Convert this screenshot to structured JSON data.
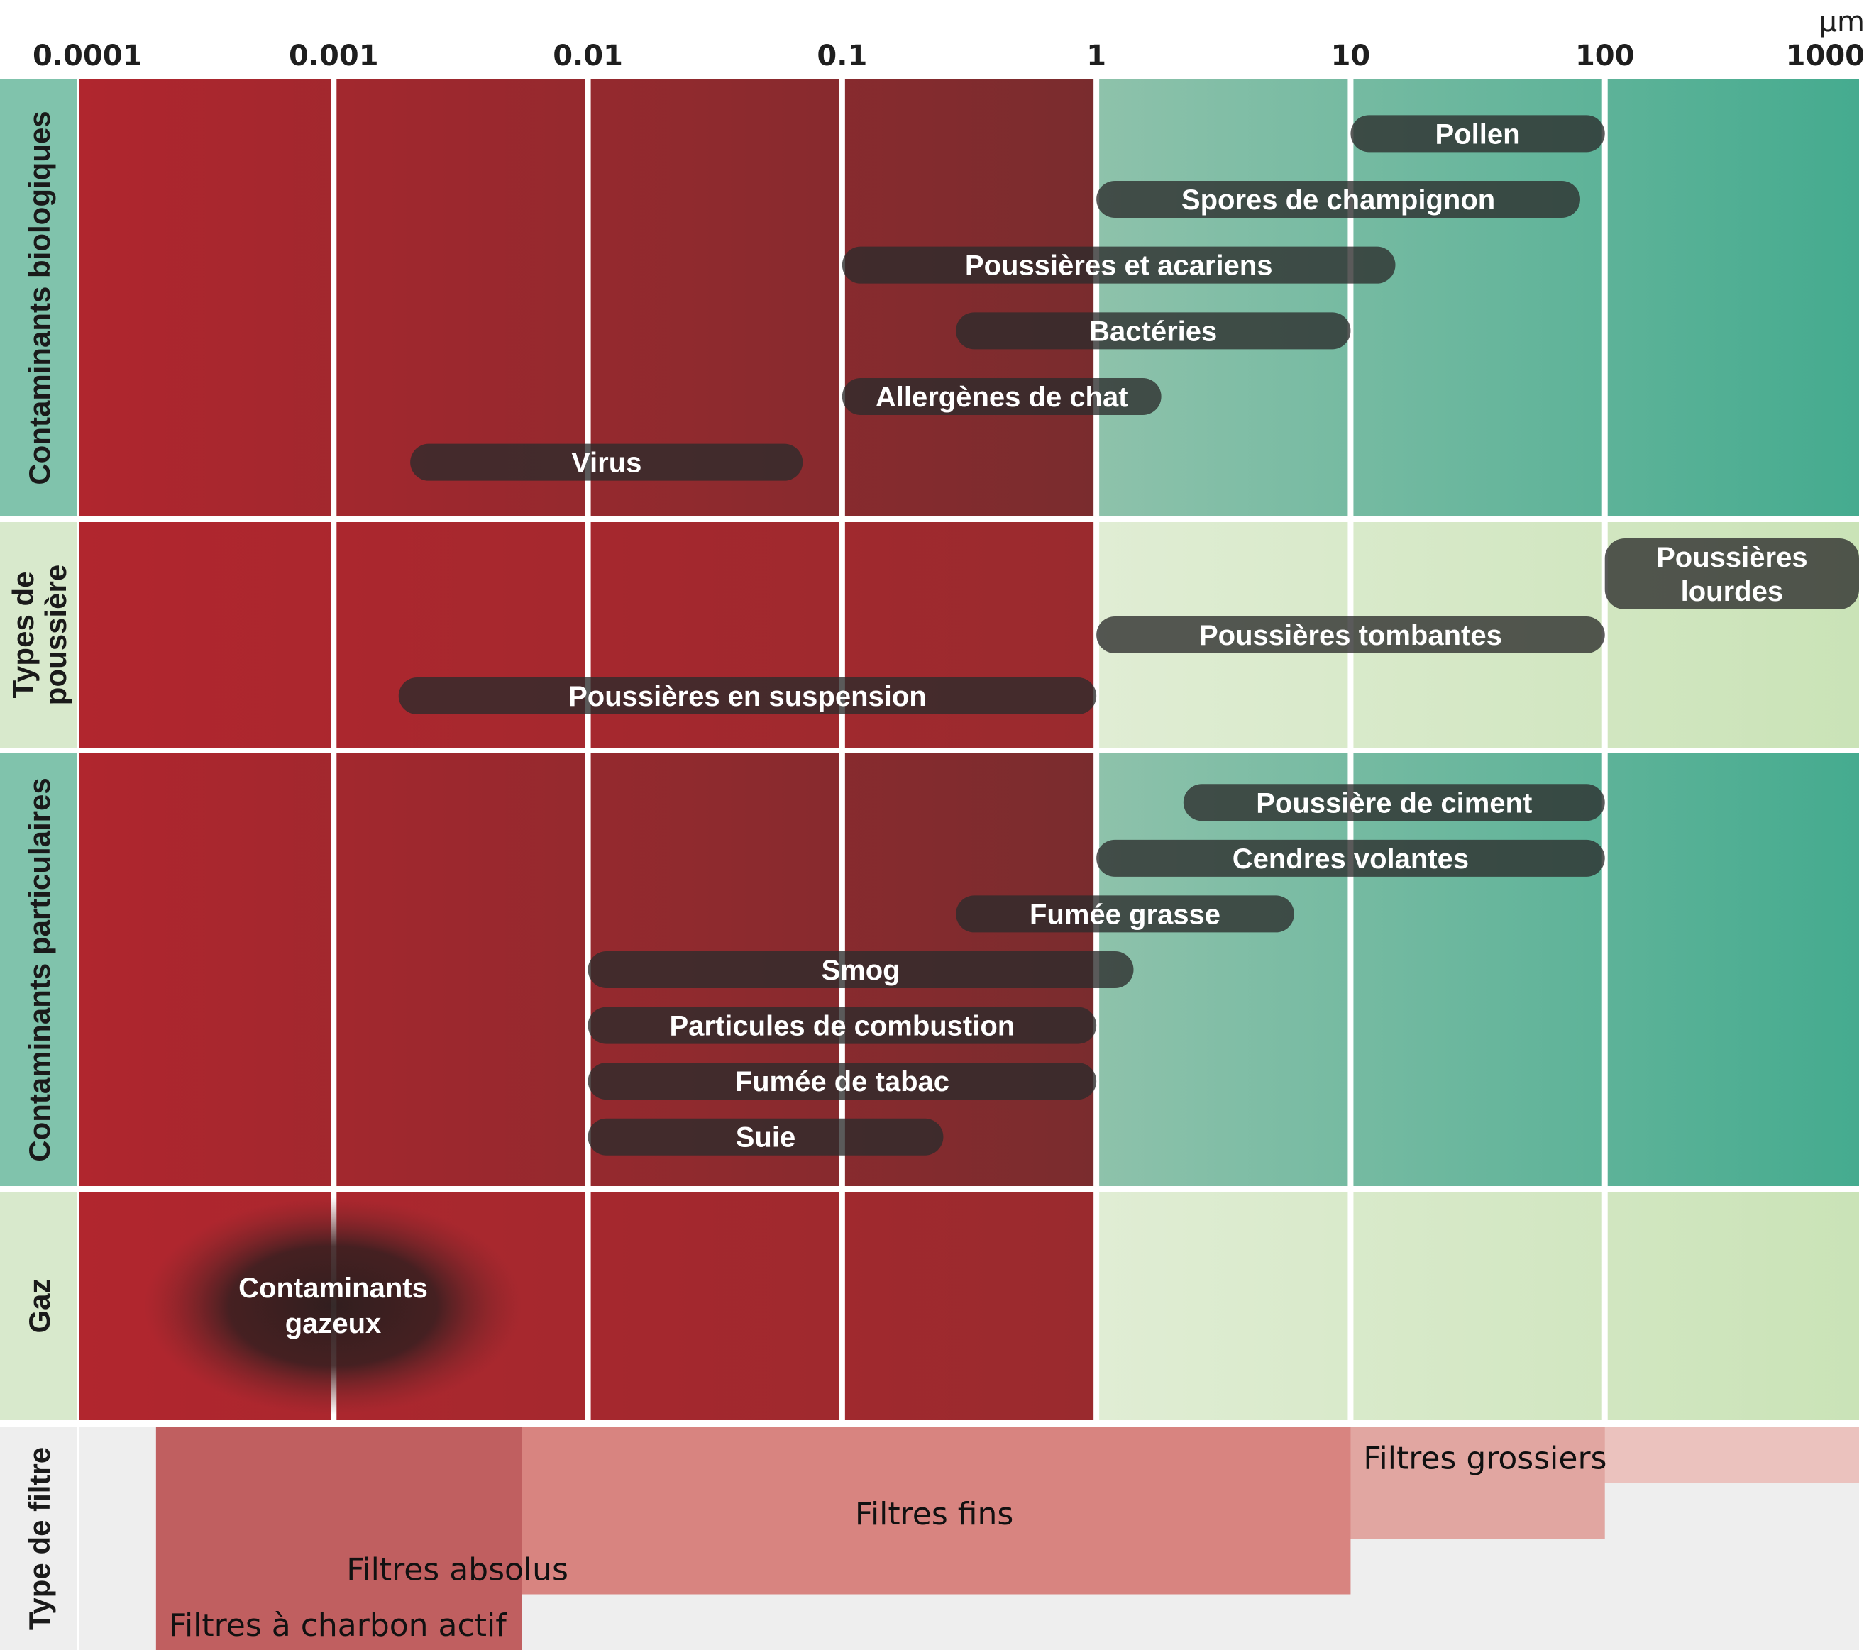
{
  "chart_data": {
    "type": "bar",
    "subtype": "horizontal-range-log-scale",
    "title": "",
    "xlabel": "",
    "x_unit": "µm",
    "x_scale": "log",
    "xlim": [
      0.0001,
      1000
    ],
    "x_ticks": [
      {
        "value": 0.0001,
        "label": "0.0001"
      },
      {
        "value": 0.001,
        "label": "0.001"
      },
      {
        "value": 0.01,
        "label": "0.01"
      },
      {
        "value": 0.1,
        "label": "0.1"
      },
      {
        "value": 1,
        "label": "1"
      },
      {
        "value": 10,
        "label": "10"
      },
      {
        "value": 100,
        "label": "100"
      },
      {
        "value": 1000,
        "label": "1000"
      }
    ],
    "grid": true,
    "background_zones": [
      {
        "name": "fine-red-zone",
        "from": 0.0001,
        "to": 1,
        "color_start": "#b0262e",
        "color_end": "#7a2c2e"
      },
      {
        "name": "coarse-green-zone",
        "from": 1,
        "to": 1000,
        "color_start": "#8ec2ab",
        "color_end": "#45ab8f"
      }
    ],
    "groups": [
      {
        "label": "Contaminants biologiques",
        "label_bg": "#80c3ac",
        "zone_style": "strong",
        "items": [
          {
            "label": "Pollen",
            "min": 10,
            "max": 100
          },
          {
            "label": "Spores de champignon",
            "min": 1,
            "max": 80
          },
          {
            "label": "Poussières et acariens",
            "min": 0.1,
            "max": 15
          },
          {
            "label": "Bactéries",
            "min": 0.28,
            "max": 10
          },
          {
            "label": "Allergènes de chat",
            "min": 0.1,
            "max": 1.8
          },
          {
            "label": "Virus",
            "min": 0.002,
            "max": 0.07
          }
        ]
      },
      {
        "label": "Types de poussière",
        "label_lines": [
          "Types de",
          "poussière"
        ],
        "label_bg": "#d8e9cc",
        "zone_style": "light",
        "items": [
          {
            "label": "Poussières lourdes",
            "label_lines": [
              "Poussières",
              "lourdes"
            ],
            "min": 100,
            "max": 1000
          },
          {
            "label": "Poussières tombantes",
            "min": 1,
            "max": 100
          },
          {
            "label": "Poussières en suspension",
            "min": 0.0018,
            "max": 1
          }
        ]
      },
      {
        "label": "Contaminants particulaires",
        "label_bg": "#80c3ac",
        "zone_style": "strong",
        "items": [
          {
            "label": "Poussière de ciment",
            "min": 2.2,
            "max": 100
          },
          {
            "label": "Cendres volantes",
            "min": 1,
            "max": 100
          },
          {
            "label": "Fumée grasse",
            "min": 0.28,
            "max": 6
          },
          {
            "label": "Smog",
            "min": 0.01,
            "max": 1.4
          },
          {
            "label": "Particules de combustion",
            "min": 0.01,
            "max": 1
          },
          {
            "label": "Fumée de tabac",
            "min": 0.01,
            "max": 1
          },
          {
            "label": "Suie",
            "min": 0.01,
            "max": 0.25
          }
        ]
      },
      {
        "label": "Gaz",
        "label_bg": "#d8e9cc",
        "zone_style": "light",
        "items": [
          {
            "label": "Contaminants gazeux",
            "label_lines": [
              "Contaminants",
              "gazeux"
            ],
            "min": 0.00018,
            "max": 0.0055,
            "shape": "ellipse"
          }
        ]
      }
    ],
    "filters": {
      "label": "Type de filtre",
      "label_bg": "#eeeeee",
      "items": [
        {
          "label": "Filtres grossiers",
          "min": 10,
          "max": 1000,
          "color": "#ebc2be"
        },
        {
          "label": "Filtres fins",
          "min": 0.1,
          "max": 100,
          "color": "#e1a6a1"
        },
        {
          "label": "Filtres absolus",
          "min": 0.001,
          "max": 10,
          "color": "#d88480"
        },
        {
          "label": "Filtres à charbon actif",
          "min": 0.0002,
          "max": 0.0055,
          "color": "#c05f60"
        }
      ]
    },
    "colors": {
      "bar_fill": "#2b2b2b",
      "bar_label": "#ffffff",
      "filter_area_bg": "#eeeeee",
      "light_zone_start": "#e0edd4",
      "light_zone_end": "#cae3b7"
    }
  }
}
